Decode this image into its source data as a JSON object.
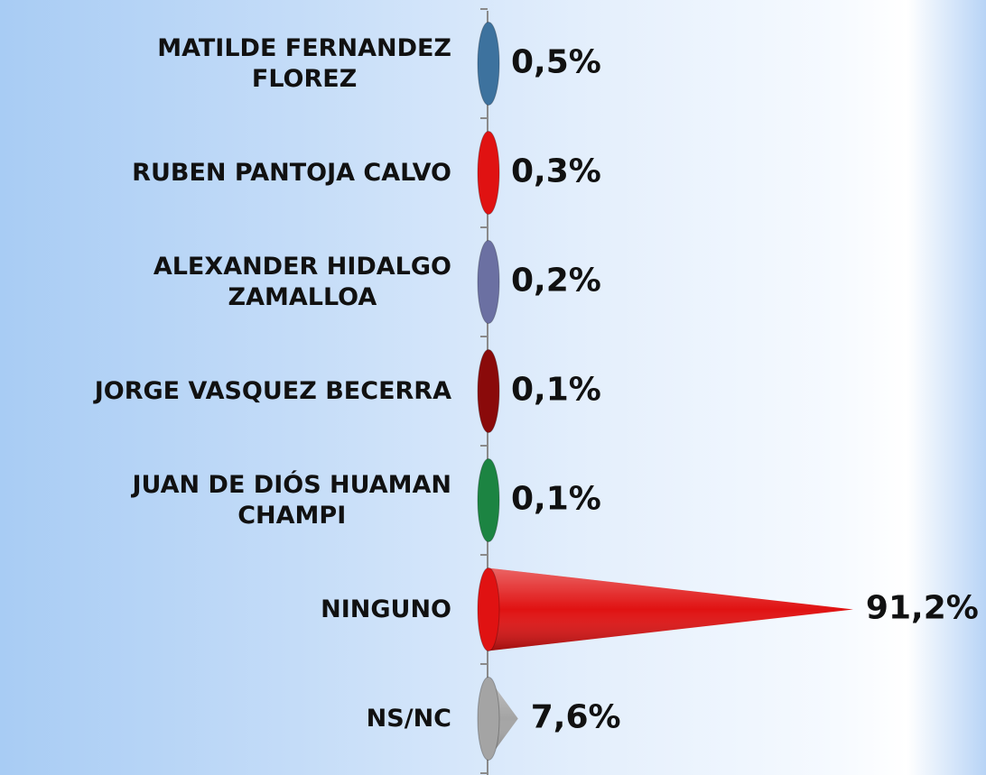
{
  "chart_data": {
    "type": "bar",
    "orientation": "horizontal",
    "categories": [
      "MATILDE FERNANDEZ\nFLOREZ",
      "RUBEN PANTOJA CALVO",
      "ALEXANDER HIDALGO\nZAMALLOA",
      "JORGE VASQUEZ BECERRA",
      "JUAN DE DIÓS HUAMAN\nCHAMPI",
      "NINGUNO",
      "NS/NC"
    ],
    "values": [
      0.5,
      0.3,
      0.2,
      0.1,
      0.1,
      91.2,
      7.6
    ],
    "value_labels": [
      "0,5%",
      "0,3%",
      "0,2%",
      "0,1%",
      "0,1%",
      "91,2%",
      "7,6%"
    ],
    "colors": [
      "#3d729e",
      "#e01212",
      "#6b70a2",
      "#8a0a0a",
      "#1c8442",
      "#e01212",
      "#a4a4a4"
    ],
    "xlim": [
      0,
      100
    ]
  }
}
